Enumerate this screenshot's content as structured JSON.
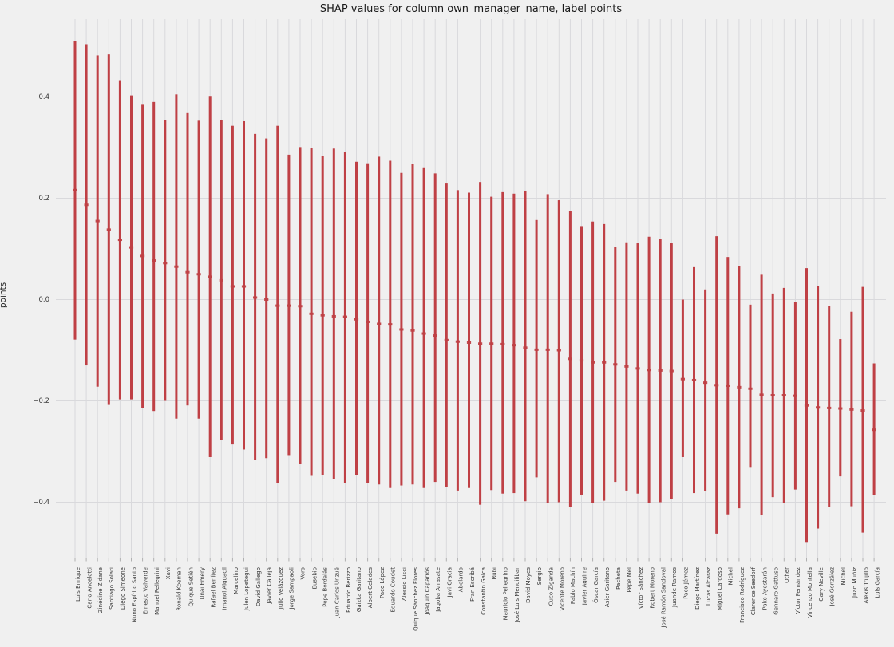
{
  "figure": {
    "title": "SHAP values for column own_manager_name, label points",
    "ylabel": "points",
    "background_color": "#f0f0f0",
    "grid_color": "#d9d9dc",
    "bar_color": "#bf4045",
    "tick_text_color": "#3a3a3a"
  },
  "chart_data": {
    "type": "errorbar",
    "title": "SHAP values for column own_manager_name, label points",
    "xlabel": "",
    "ylabel": "points",
    "grid": true,
    "legend": false,
    "ylim": [
      -0.52,
      0.56
    ],
    "ytick_labels": [
      "0.4",
      "0.2",
      "0.0",
      "−0.2",
      "−0.4"
    ],
    "ytick_values": [
      0.4,
      0.2,
      0.0,
      -0.2,
      -0.4
    ],
    "points": [
      {
        "label": "Luis Enrique",
        "value": 0.216,
        "low": -0.079,
        "high": 0.511
      },
      {
        "label": "Carlo Ancelotti",
        "value": 0.187,
        "low": -0.13,
        "high": 0.504
      },
      {
        "label": "Zinédine Zidane",
        "value": 0.155,
        "low": -0.172,
        "high": 0.482
      },
      {
        "label": "Santiago Solari",
        "value": 0.138,
        "low": -0.208,
        "high": 0.484
      },
      {
        "label": "Diego Simeone",
        "value": 0.118,
        "low": -0.197,
        "high": 0.433
      },
      {
        "label": "Nuno Espírito Santo",
        "value": 0.103,
        "low": -0.197,
        "high": 0.403
      },
      {
        "label": "Ernesto Valverde",
        "value": 0.086,
        "low": -0.214,
        "high": 0.386
      },
      {
        "label": "Manuel Pellegrini",
        "value": 0.077,
        "low": -0.22,
        "high": 0.39
      },
      {
        "label": "Xavi",
        "value": 0.072,
        "low": -0.2,
        "high": 0.355
      },
      {
        "label": "Ronald Koeman",
        "value": 0.065,
        "low": -0.235,
        "high": 0.405
      },
      {
        "label": "Quique Setién",
        "value": 0.054,
        "low": -0.209,
        "high": 0.368
      },
      {
        "label": "Unai Emery",
        "value": 0.05,
        "low": -0.235,
        "high": 0.353
      },
      {
        "label": "Rafael Benítez",
        "value": 0.045,
        "low": -0.311,
        "high": 0.402
      },
      {
        "label": "Imanol Alguacil",
        "value": 0.038,
        "low": -0.277,
        "high": 0.355
      },
      {
        "label": "Marcelino",
        "value": 0.026,
        "low": -0.286,
        "high": 0.343
      },
      {
        "label": "Julen Lopetegui",
        "value": 0.026,
        "low": -0.296,
        "high": 0.352
      },
      {
        "label": "David Gallego",
        "value": 0.004,
        "low": -0.316,
        "high": 0.327
      },
      {
        "label": "Javier Calleja",
        "value": 0.0,
        "low": -0.313,
        "high": 0.318
      },
      {
        "label": "Julio Velázquez",
        "value": -0.012,
        "low": -0.363,
        "high": 0.343
      },
      {
        "label": "Jorge Sampaoli",
        "value": -0.012,
        "low": -0.307,
        "high": 0.286
      },
      {
        "label": "Voro",
        "value": -0.013,
        "low": -0.325,
        "high": 0.301
      },
      {
        "label": "Eusebio",
        "value": -0.028,
        "low": -0.348,
        "high": 0.3
      },
      {
        "label": "Pepe Bordalás",
        "value": -0.031,
        "low": -0.347,
        "high": 0.283
      },
      {
        "label": "Juan Carlos Unzué",
        "value": -0.033,
        "low": -0.354,
        "high": 0.298
      },
      {
        "label": "Eduardo Berizzo",
        "value": -0.034,
        "low": -0.362,
        "high": 0.291
      },
      {
        "label": "Gaizka Garitano",
        "value": -0.039,
        "low": -0.347,
        "high": 0.272
      },
      {
        "label": "Albert Celades",
        "value": -0.044,
        "low": -0.362,
        "high": 0.269
      },
      {
        "label": "Paco López",
        "value": -0.048,
        "low": -0.365,
        "high": 0.282
      },
      {
        "label": "Eduardo Coudet",
        "value": -0.049,
        "low": -0.372,
        "high": 0.274
      },
      {
        "label": "Alessio Lisci",
        "value": -0.059,
        "low": -0.367,
        "high": 0.25
      },
      {
        "label": "Quique Sánchez Flores",
        "value": -0.061,
        "low": -0.365,
        "high": 0.267
      },
      {
        "label": "Joaquín Caparrós",
        "value": -0.067,
        "low": -0.372,
        "high": 0.261
      },
      {
        "label": "Jagoba Arrasate",
        "value": -0.071,
        "low": -0.36,
        "high": 0.249
      },
      {
        "label": "Javi Gracia",
        "value": -0.08,
        "low": -0.37,
        "high": 0.229
      },
      {
        "label": "Abelardo",
        "value": -0.083,
        "low": -0.377,
        "high": 0.216
      },
      {
        "label": "Fran Escribá",
        "value": -0.085,
        "low": -0.372,
        "high": 0.211
      },
      {
        "label": "Constantin Galca",
        "value": -0.087,
        "low": -0.405,
        "high": 0.232
      },
      {
        "label": "Rubi",
        "value": -0.087,
        "low": -0.376,
        "high": 0.203
      },
      {
        "label": "Mauricio Pellegrino",
        "value": -0.088,
        "low": -0.383,
        "high": 0.212
      },
      {
        "label": "José Luis Mendilibar",
        "value": -0.09,
        "low": -0.382,
        "high": 0.209
      },
      {
        "label": "David Moyes",
        "value": -0.095,
        "low": -0.398,
        "high": 0.215
      },
      {
        "label": "Sergio",
        "value": -0.099,
        "low": -0.351,
        "high": 0.157
      },
      {
        "label": "Cuco Ziganda",
        "value": -0.099,
        "low": -0.401,
        "high": 0.208
      },
      {
        "label": "Vicente Moreno",
        "value": -0.1,
        "low": -0.4,
        "high": 0.196
      },
      {
        "label": "Pablo Machín",
        "value": -0.117,
        "low": -0.409,
        "high": 0.175
      },
      {
        "label": "Javier Aguirre",
        "value": -0.12,
        "low": -0.385,
        "high": 0.145
      },
      {
        "label": "Óscar García",
        "value": -0.124,
        "low": -0.402,
        "high": 0.154
      },
      {
        "label": "Asier Garitano",
        "value": -0.124,
        "low": -0.397,
        "high": 0.149
      },
      {
        "label": "Pacheta",
        "value": -0.128,
        "low": -0.36,
        "high": 0.104
      },
      {
        "label": "Pepe Mel",
        "value": -0.132,
        "low": -0.377,
        "high": 0.113
      },
      {
        "label": "Víctor Sánchez",
        "value": -0.136,
        "low": -0.383,
        "high": 0.111
      },
      {
        "label": "Robert Moreno",
        "value": -0.139,
        "low": -0.402,
        "high": 0.124
      },
      {
        "label": "José Ramón Sandoval",
        "value": -0.14,
        "low": -0.4,
        "high": 0.12
      },
      {
        "label": "Juande Ramos",
        "value": -0.141,
        "low": -0.393,
        "high": 0.111
      },
      {
        "label": "Paco Jémez",
        "value": -0.157,
        "low": -0.311,
        "high": 0.0
      },
      {
        "label": "Diego Martínez",
        "value": -0.159,
        "low": -0.382,
        "high": 0.064
      },
      {
        "label": "Lucas Alcaraz",
        "value": -0.164,
        "low": -0.378,
        "high": 0.02
      },
      {
        "label": "Miguel Cardoso",
        "value": -0.169,
        "low": -0.462,
        "high": 0.125
      },
      {
        "label": "Michel",
        "value": -0.17,
        "low": -0.424,
        "high": 0.084
      },
      {
        "label": "Francisco Rodríguez",
        "value": -0.173,
        "low": -0.412,
        "high": 0.066
      },
      {
        "label": "Clarence Seedorf",
        "value": -0.176,
        "low": -0.332,
        "high": -0.01
      },
      {
        "label": "Pako Ayestarán",
        "value": -0.188,
        "low": -0.425,
        "high": 0.049
      },
      {
        "label": "Gennaro Gattuso",
        "value": -0.189,
        "low": -0.39,
        "high": 0.012
      },
      {
        "label": "Other",
        "value": -0.189,
        "low": -0.401,
        "high": 0.023
      },
      {
        "label": "Víctor Fernández",
        "value": -0.19,
        "low": -0.375,
        "high": -0.005
      },
      {
        "label": "Vincenzo Montella",
        "value": -0.209,
        "low": -0.48,
        "high": 0.062
      },
      {
        "label": "Gary Neville",
        "value": -0.213,
        "low": -0.452,
        "high": 0.026
      },
      {
        "label": "José González",
        "value": -0.214,
        "low": -0.409,
        "high": -0.012
      },
      {
        "label": "Michel",
        "value": -0.215,
        "low": -0.349,
        "high": -0.078
      },
      {
        "label": "Juan Muñiz",
        "value": -0.217,
        "low": -0.408,
        "high": -0.024
      },
      {
        "label": "Alexis Trujillo",
        "value": -0.219,
        "low": -0.46,
        "high": 0.025
      },
      {
        "label": "Luis García",
        "value": -0.257,
        "low": -0.386,
        "high": -0.126
      }
    ]
  }
}
